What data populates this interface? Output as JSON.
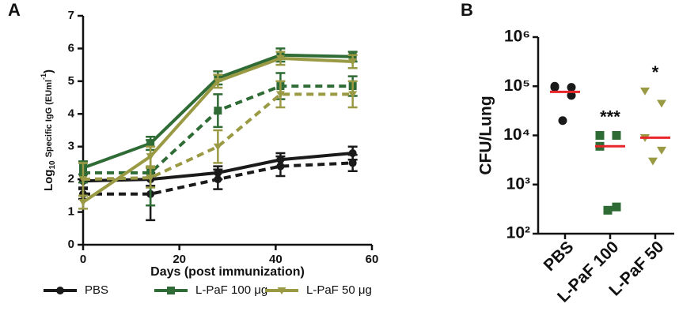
{
  "chart_data": [
    {
      "type": "line",
      "panel": "A",
      "ylabel": [
        "Log",
        "10",
        "Specific IgG (EUml",
        "-1",
        ")"
      ],
      "xlabel": "Days (post immunization)",
      "x": [
        0,
        14,
        28,
        41,
        56
      ],
      "xlim": [
        0,
        60
      ],
      "xticks": [
        0,
        20,
        40,
        60
      ],
      "ylim": [
        0,
        7
      ],
      "yticks": [
        0,
        1,
        2,
        3,
        4,
        5,
        6,
        7
      ],
      "series": [
        {
          "name": "PBS",
          "color": "#1a1a1a",
          "marker": "circle",
          "values": [
            1.95,
            2.0,
            2.2,
            2.6,
            2.8
          ],
          "errors": [
            0.2,
            0.2,
            0.2,
            0.2,
            0.2
          ],
          "dashed_values": [
            1.55,
            1.55,
            2.0,
            2.4,
            2.5
          ],
          "dashed_errors": [
            0.15,
            0.8,
            0.3,
            0.3,
            0.25
          ]
        },
        {
          "name": "L-PaF 100 μg",
          "color": "#2e6b35",
          "marker": "square",
          "values": [
            2.35,
            3.1,
            5.1,
            5.8,
            5.75
          ],
          "errors": [
            0.2,
            0.2,
            0.2,
            0.2,
            0.15
          ],
          "dashed_values": [
            2.2,
            2.2,
            4.1,
            4.85,
            4.85
          ],
          "dashed_errors": [
            0.3,
            1.0,
            0.5,
            0.4,
            0.3
          ]
        },
        {
          "name": "L-PaF 50 μg",
          "color": "#9a9a45",
          "marker": "triangle",
          "values": [
            1.3,
            2.7,
            5.0,
            5.7,
            5.6
          ],
          "errors": [
            0.2,
            0.3,
            0.2,
            0.2,
            0.2
          ],
          "dashed_values": [
            2.0,
            2.05,
            3.0,
            4.6,
            4.6
          ],
          "dashed_errors": [
            0.5,
            0.3,
            0.5,
            0.4,
            0.4
          ]
        }
      ]
    },
    {
      "type": "dot",
      "panel": "B",
      "ylabel": "CFU/Lung",
      "log_scale": true,
      "ylim": [
        100,
        1000000
      ],
      "yticks": [
        {
          "value": 100,
          "label": "10²"
        },
        {
          "value": 1000,
          "label": "10³"
        },
        {
          "value": 10000,
          "label": "10⁴"
        },
        {
          "value": 100000,
          "label": "10⁵"
        },
        {
          "value": 1000000,
          "label": "10⁶"
        }
      ],
      "categories": [
        "PBS",
        "L-PaF 100",
        "L-PaF 50"
      ],
      "colors": [
        "#1a1a1a",
        "#2e6b35",
        "#9a9a45"
      ],
      "markers": [
        "circle",
        "square",
        "triangle"
      ],
      "values": [
        [
          100000,
          95000,
          95000,
          65000,
          20000
        ],
        [
          10000,
          10000,
          6000,
          350,
          300
        ],
        [
          80000,
          45000,
          9000,
          5000,
          3000
        ]
      ],
      "means": [
        77000,
        6000,
        9000
      ],
      "mean_color": "#e8262a",
      "annotations": [
        "",
        "***",
        "*"
      ]
    }
  ]
}
